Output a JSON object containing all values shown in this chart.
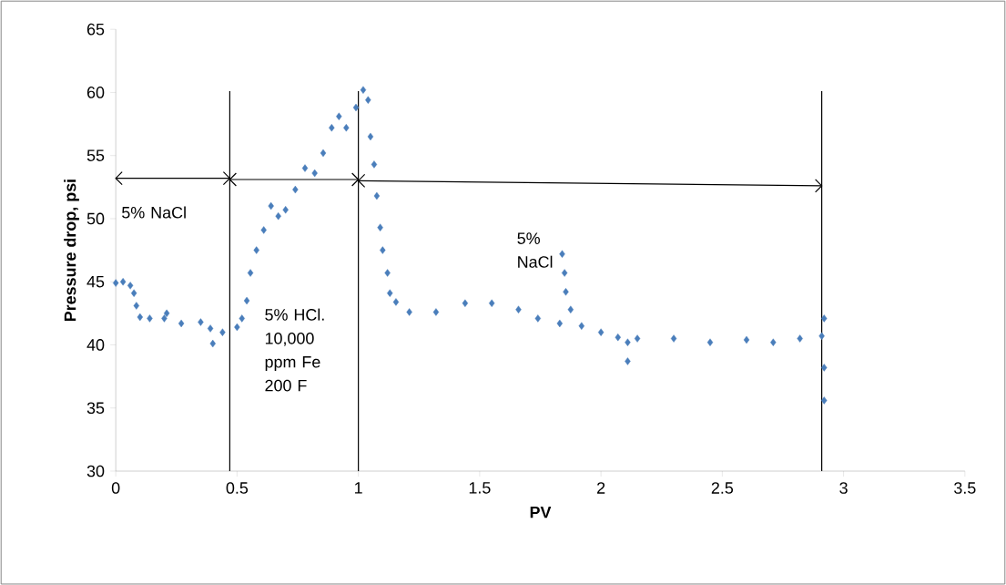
{
  "chart_data": {
    "type": "scatter",
    "xlabel": "PV",
    "ylabel": "Pressure drop, psi",
    "annotations": [
      "5% NaCl",
      "5% HCl. 10,000 ppm Fe 200 F",
      "5% NaCl"
    ],
    "x": [
      0.0,
      0.03,
      0.06,
      0.075,
      0.085,
      0.1,
      0.14,
      0.2,
      0.21,
      0.27,
      0.35,
      0.39,
      0.4,
      0.44,
      0.5,
      0.52,
      0.54,
      0.555,
      0.58,
      0.61,
      0.64,
      0.67,
      0.7,
      0.74,
      0.78,
      0.82,
      0.855,
      0.89,
      0.92,
      0.95,
      0.99,
      1.02,
      1.04,
      1.05,
      1.065,
      1.076,
      1.09,
      1.1,
      1.12,
      1.13,
      1.155,
      1.21,
      1.32,
      1.44,
      1.55,
      1.66,
      1.74,
      1.83,
      1.84,
      1.85,
      1.855,
      1.875,
      1.92,
      2.0,
      2.07,
      2.11,
      2.11,
      2.15,
      2.3,
      2.45,
      2.6,
      2.71,
      2.82,
      2.91,
      2.92,
      2.92,
      2.92
    ],
    "values": [
      44.9,
      45.0,
      44.7,
      44.1,
      43.1,
      42.2,
      42.1,
      42.1,
      42.5,
      41.7,
      41.8,
      41.3,
      40.1,
      41.0,
      41.4,
      42.1,
      43.5,
      45.7,
      47.5,
      49.1,
      51.0,
      50.2,
      50.7,
      52.3,
      54.0,
      53.6,
      55.2,
      57.2,
      58.1,
      57.2,
      58.8,
      60.2,
      59.4,
      56.5,
      54.3,
      51.8,
      49.3,
      47.5,
      45.7,
      44.1,
      43.4,
      42.6,
      42.6,
      43.3,
      43.3,
      42.8,
      42.1,
      41.7,
      47.2,
      45.7,
      44.2,
      42.8,
      41.5,
      41.0,
      40.6,
      40.2,
      38.7,
      40.5,
      40.5,
      40.2,
      40.4,
      40.2,
      40.5,
      40.7,
      42.1,
      38.2,
      35.6
    ],
    "color": "#4a7ebb",
    "marker": "diamond",
    "xlim": [
      0,
      3.5
    ],
    "xticks": [
      0,
      0.5,
      1,
      1.5,
      2,
      2.5,
      3,
      3.5
    ],
    "ylim": [
      30,
      65
    ],
    "yticks": [
      30,
      35,
      40,
      45,
      50,
      55,
      60,
      65
    ],
    "ref_lines": [
      {
        "axis": "x",
        "value": 0.47,
        "color": "#000000"
      },
      {
        "axis": "x",
        "value": 1.0,
        "color": "#000000"
      },
      {
        "axis": "x",
        "value": 2.91,
        "color": "#000000"
      }
    ],
    "grid": false
  }
}
